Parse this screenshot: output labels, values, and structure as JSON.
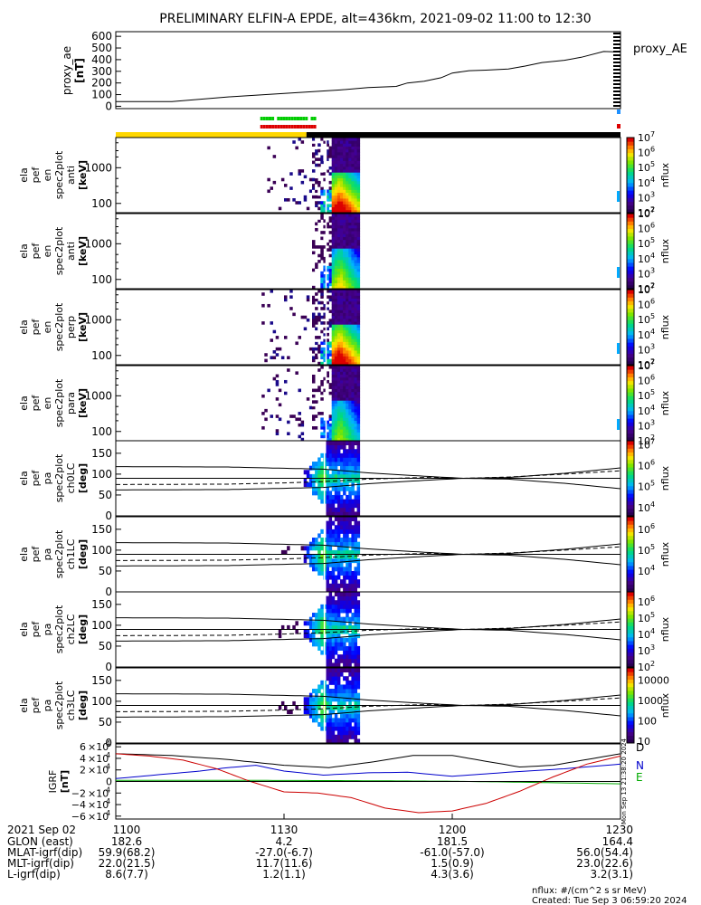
{
  "title": "PRELIMINARY ELFIN-A EPDE, alt=436km, 2021-09-02 11:00 to 12:30",
  "chart_data": {
    "type": "multi-panel",
    "time_range": [
      "11:00",
      "12:30"
    ],
    "xticks": [
      "1100",
      "1130",
      "1200",
      "1230"
    ],
    "ae": {
      "ylabel_lines": [
        "proxy_ae",
        "[nT]"
      ],
      "legend": "proxy_AE",
      "ylim": [
        -20,
        640
      ],
      "yticks": [
        0,
        100,
        200,
        300,
        400,
        500,
        600
      ],
      "tick_labels": [
        "0",
        "100",
        "200",
        "300",
        "400",
        "500",
        "600"
      ],
      "t": [
        0,
        10,
        20,
        30,
        40,
        45,
        50,
        52,
        55,
        58,
        60,
        63,
        66,
        70,
        73,
        76,
        80,
        83,
        87,
        90
      ],
      "v": [
        40,
        40,
        80,
        110,
        140,
        160,
        170,
        200,
        215,
        245,
        285,
        305,
        310,
        320,
        345,
        375,
        395,
        420,
        470,
        465
      ]
    },
    "bars": {
      "state_left_label": "",
      "state_colors": [
        "#ffd700",
        "#000000"
      ],
      "state_split_minute": 34,
      "dot_colors": [
        "#00cc00",
        "#dd0000"
      ],
      "dots_green": [
        26.0,
        26.5,
        27.0,
        27.5,
        28.0,
        29.0,
        29.5,
        30.0,
        30.5,
        31.0,
        31.5,
        32.0,
        32.5,
        33.0,
        33.5,
        34.0,
        35.0,
        35.5
      ],
      "dots_red": [
        26.0,
        26.5,
        27.0,
        27.5,
        28.0,
        28.5,
        29.0,
        29.5,
        30.0,
        30.5,
        31.0,
        31.5,
        32.0,
        32.5,
        33.0,
        33.5,
        34.0,
        34.5,
        35.0,
        35.5
      ]
    },
    "spectrograms": [
      {
        "label_lines": [
          "ela",
          "pef",
          "en",
          "spec2plot",
          "anti",
          "[keV]"
        ],
        "cb_max_exp": 7,
        "cb_min_exp": 2,
        "intensity": 1.0,
        "blob_start": 36.5
      },
      {
        "label_lines": [
          "ela",
          "pef",
          "en",
          "spec2plot",
          "anti",
          "[keV]"
        ],
        "cb_max_exp": 7,
        "cb_min_exp": 2,
        "intensity": 0.7,
        "blob_start": 36.8
      },
      {
        "label_lines": [
          "ela",
          "pef",
          "en",
          "spec2plot",
          "perp",
          "[keV]"
        ],
        "cb_max_exp": 7,
        "cb_min_exp": 2,
        "intensity": 1.0,
        "blob_start": 36.5
      },
      {
        "label_lines": [
          "ela",
          "pef",
          "en",
          "spec2plot",
          "para",
          "[keV]"
        ],
        "cb_max_exp": 7,
        "cb_min_exp": 2,
        "intensity": 0.6,
        "blob_start": 36.8
      }
    ],
    "energy_axis": {
      "ylim": [
        55,
        7000
      ],
      "ticks": [
        100,
        1000
      ],
      "tick_labels": [
        "100",
        "1000"
      ]
    },
    "pitch_panels": [
      {
        "label_lines": [
          "ela",
          "pef",
          "pa",
          "spec2plot",
          "ch0LC",
          "[deg]"
        ],
        "cb": [
          "10",
          "10",
          "10",
          "10"
        ],
        "cb_exps": [
          "4",
          "5",
          "6",
          "7"
        ],
        "cb_min_exp": 3.6,
        "cb_max_exp": 7.2
      },
      {
        "label_lines": [
          "ela",
          "pef",
          "pa",
          "spec2plot",
          "ch1LC",
          "[deg]"
        ],
        "cb": [
          "10",
          "10",
          "10"
        ],
        "cb_exps": [
          "4",
          "5",
          "6"
        ],
        "cb_min_exp": 3.0,
        "cb_max_exp": 6.6
      },
      {
        "label_lines": [
          "ela",
          "pef",
          "pa",
          "spec2plot",
          "ch2LC",
          "[deg]"
        ],
        "cb": [
          "10",
          "10",
          "10",
          "10",
          "10"
        ],
        "cb_exps": [
          "2",
          "3",
          "4",
          "5",
          "6"
        ],
        "cb_min_exp": 2.0,
        "cb_max_exp": 6.6
      },
      {
        "label_lines": [
          "ela",
          "pef",
          "pa",
          "spec2plot",
          "ch3LC",
          "[deg]"
        ],
        "cb": [
          "10",
          "100",
          "1000",
          "10000"
        ],
        "cb_exps": [
          "",
          "",
          "",
          ""
        ],
        "cb_min_exp": 0.9,
        "cb_max_exp": 4.6
      }
    ],
    "pitch_axis": {
      "ylim": [
        0,
        180
      ],
      "ticks": [
        0,
        50,
        100,
        150
      ],
      "tick_labels": [
        "0",
        "50",
        "100",
        "150"
      ]
    },
    "lc_curves": {
      "solid_upper": {
        "t": [
          0,
          20,
          30,
          37,
          45,
          55,
          62,
          70,
          80,
          90
        ],
        "v": [
          118,
          117,
          114,
          112,
          103,
          95,
          90,
          92,
          102,
          115
        ]
      },
      "solid_lower": {
        "t": [
          0,
          20,
          30,
          37,
          45,
          55,
          62,
          70,
          80,
          90
        ],
        "v": [
          62,
          63,
          66,
          68,
          77,
          85,
          90,
          88,
          78,
          65
        ]
      },
      "dashed": {
        "t": [
          0,
          20,
          30,
          37,
          45,
          55,
          62,
          70,
          80,
          90
        ],
        "v": [
          75,
          76,
          79,
          82,
          88,
          92,
          90,
          93,
          100,
          108
        ]
      },
      "horizontal": 90
    },
    "igrf": {
      "ylabel_lines": [
        "IGRF",
        "[nT]"
      ],
      "ylim": [
        -65000,
        65000
      ],
      "ticks": [
        60000,
        40000,
        20000,
        0,
        -20000,
        -40000,
        -60000
      ],
      "tick_mant": [
        "6",
        "4",
        "2",
        "0",
        "−2",
        "−4",
        "−6"
      ],
      "tick_exp": [
        "4",
        "4",
        "4",
        "",
        "4",
        "4",
        "4"
      ],
      "series": [
        {
          "name": "D",
          "color": "#000000",
          "t": [
            0,
            10,
            20,
            30,
            38,
            46,
            53,
            60,
            66,
            72,
            78,
            84,
            90
          ],
          "v": [
            48000,
            45000,
            38000,
            28000,
            24000,
            34000,
            45000,
            45000,
            35000,
            25000,
            28000,
            38000,
            48000
          ]
        },
        {
          "name": "N",
          "color": "#0000cc",
          "t": [
            0,
            8,
            15,
            20,
            25,
            30,
            37,
            45,
            52,
            60,
            70,
            80,
            90
          ],
          "v": [
            5000,
            12000,
            18000,
            24000,
            28000,
            18000,
            11000,
            15000,
            16000,
            9000,
            16000,
            22000,
            30000
          ]
        },
        {
          "name": "E",
          "color": "#00aa00",
          "t": [
            0,
            20,
            40,
            50,
            60,
            70,
            90
          ],
          "v": [
            2000,
            2000,
            1500,
            1000,
            500,
            -1000,
            -4000
          ]
        },
        {
          "name": "",
          "color": "#cc0000",
          "t": [
            0,
            6,
            12,
            18,
            24,
            30,
            36,
            42,
            48,
            54,
            60,
            66,
            72,
            78,
            84,
            90
          ],
          "v": [
            48000,
            44000,
            37000,
            22000,
            0,
            -18000,
            -20000,
            -28000,
            -46000,
            -54000,
            -51000,
            -38000,
            -17000,
            8000,
            30000,
            44000
          ]
        }
      ]
    },
    "table": {
      "rows": [
        {
          "label": "2021 Sep 02",
          "values": [
            "1100",
            "1130",
            "1200",
            "1230"
          ]
        },
        {
          "label": "GLON (east)",
          "values": [
            "182.6",
            "4.2",
            "181.5",
            "164.4"
          ]
        },
        {
          "label": "MLAT-igrf(dip)",
          "values": [
            "59.9(68.2)",
            "-27.0(-6.7)",
            "-61.0(-57.0)",
            "56.0(54.4)"
          ]
        },
        {
          "label": "MLT-igrf(dip)",
          "values": [
            "22.0(21.5)",
            "11.7(11.6)",
            "1.5(0.9)",
            "23.0(22.6)"
          ]
        },
        {
          "label": "L-igrf(dip)",
          "values": [
            "8.6(7.7)",
            "1.2(1.1)",
            "4.3(3.6)",
            "3.2(3.1)"
          ]
        }
      ]
    },
    "footer": {
      "units": "nflux: #/(cm^2 s sr MeV)",
      "created": "Created: Tue Sep  3 06:59:20 2024",
      "side_stamp": "Mon Sep 13 21:38:20 2024"
    },
    "colorbar_label": "nflux"
  }
}
